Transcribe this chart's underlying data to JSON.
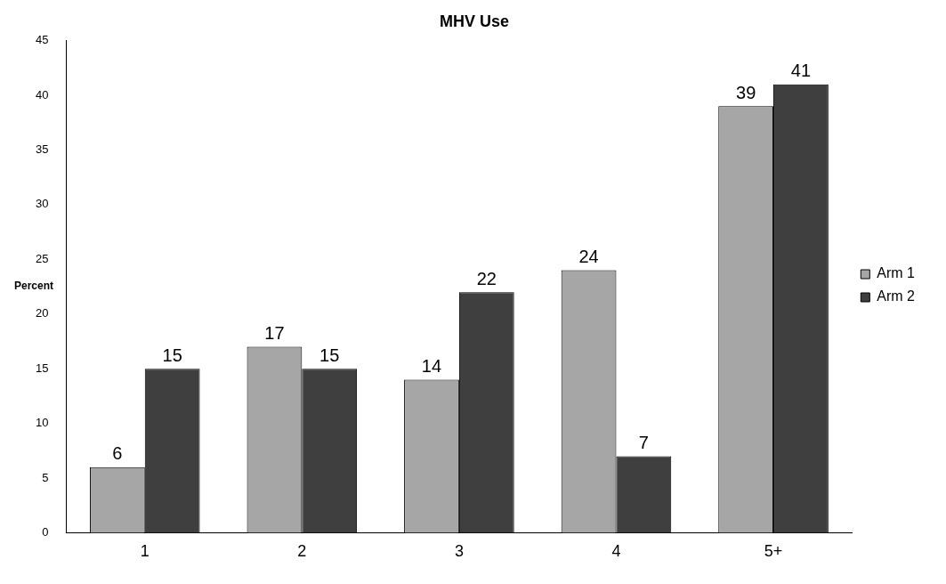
{
  "chart_data": {
    "type": "bar",
    "title": "MHV Use",
    "ylabel": "Percent",
    "categories": [
      "1",
      "2",
      "3",
      "4",
      "5+"
    ],
    "series": [
      {
        "name": "Arm 1",
        "color": "#a6a6a6",
        "values": [
          6,
          17,
          14,
          24,
          39
        ]
      },
      {
        "name": "Arm 2",
        "color": "#3f3f3f",
        "values": [
          15,
          15,
          22,
          7,
          41
        ]
      }
    ],
    "ylim": [
      0,
      45
    ],
    "yticks": [
      0,
      5,
      10,
      15,
      20,
      25,
      30,
      35,
      40,
      45
    ],
    "grid": false,
    "legend": "right",
    "data_labels": true
  }
}
